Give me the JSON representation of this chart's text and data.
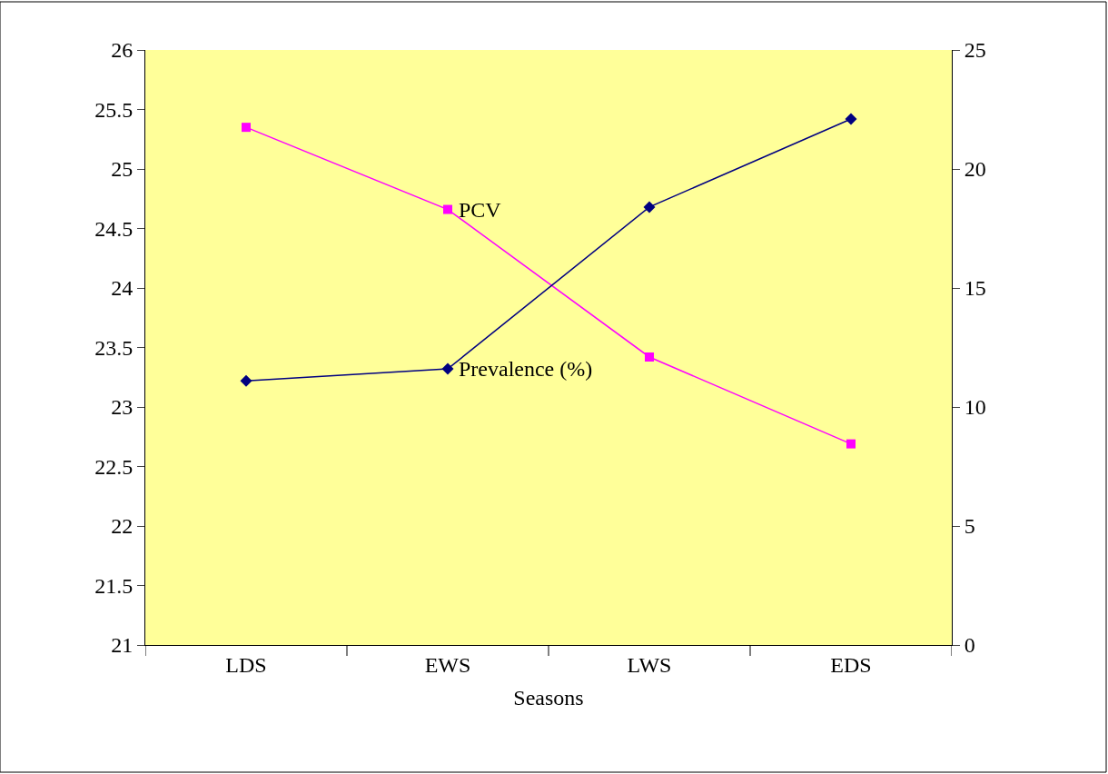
{
  "chart_data": {
    "type": "line",
    "xlabel": "Seasons",
    "categories": [
      "LDS",
      "EWS",
      "LWS",
      "EDS"
    ],
    "series": [
      {
        "name": "PCV",
        "color": "#ff00ff",
        "marker": "square",
        "values": [
          25.35,
          24.66,
          23.42,
          22.69
        ]
      },
      {
        "name": "Prevalence (%)",
        "color": "#000080",
        "marker": "diamond",
        "axis": "y2",
        "values": [
          11.1,
          11.6,
          18.4,
          22.1
        ]
      }
    ],
    "ylim": [
      21,
      26
    ],
    "yticks": [
      21,
      21.5,
      22,
      22.5,
      23,
      23.5,
      24,
      24.5,
      25,
      25.5,
      26
    ],
    "y2lim": [
      0,
      25
    ],
    "y2ticks": [
      0,
      5,
      10,
      15,
      20,
      25
    ],
    "grid": false,
    "legend": false,
    "line_style": "solid"
  }
}
